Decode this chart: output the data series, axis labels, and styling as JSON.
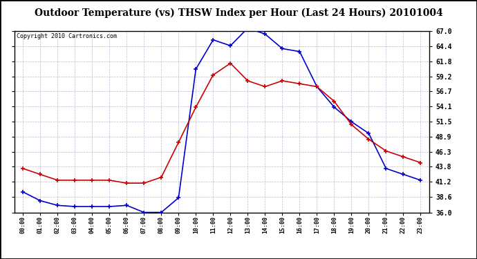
{
  "title": "Outdoor Temperature (vs) THSW Index per Hour (Last 24 Hours) 20101004",
  "copyright": "Copyright 2010 Cartronics.com",
  "hours": [
    "00:00",
    "01:00",
    "02:00",
    "03:00",
    "04:00",
    "05:00",
    "06:00",
    "07:00",
    "08:00",
    "09:00",
    "10:00",
    "11:00",
    "12:00",
    "13:00",
    "14:00",
    "15:00",
    "16:00",
    "17:00",
    "18:00",
    "19:00",
    "20:00",
    "21:00",
    "22:00",
    "23:00"
  ],
  "temp_red": [
    43.5,
    42.5,
    41.5,
    41.5,
    41.5,
    41.5,
    41.0,
    41.0,
    42.0,
    48.0,
    54.0,
    59.5,
    61.5,
    58.5,
    57.5,
    58.5,
    58.0,
    57.5,
    55.0,
    51.0,
    48.5,
    46.5,
    45.5,
    44.5
  ],
  "thsw_blue": [
    39.5,
    38.0,
    37.2,
    37.0,
    37.0,
    37.0,
    37.2,
    36.0,
    36.0,
    38.5,
    60.5,
    65.5,
    64.5,
    67.5,
    66.5,
    64.0,
    63.5,
    57.5,
    54.0,
    51.5,
    49.5,
    43.5,
    42.5,
    41.5
  ],
  "ylim": [
    36.0,
    67.0
  ],
  "yticks": [
    36.0,
    38.6,
    41.2,
    43.8,
    46.3,
    48.9,
    51.5,
    54.1,
    56.7,
    59.2,
    61.8,
    64.4,
    67.0
  ],
  "red_color": "#cc0000",
  "blue_color": "#0000cc",
  "bg_color": "#ffffff",
  "plot_bg_color": "#ffffff",
  "grid_color": "#aaaacc",
  "title_fontsize": 10,
  "copyright_fontsize": 6,
  "outer_border_color": "#000000"
}
